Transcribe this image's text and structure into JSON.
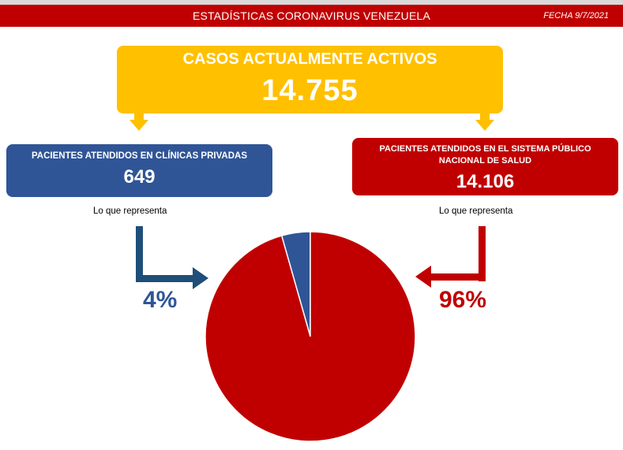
{
  "header": {
    "title": "ESTADÍSTICAS CORONAVIRUS VENEZUELA",
    "date": "FECHA 9/7/2021"
  },
  "active": {
    "label": "CASOS ACTUALMENTE ACTIVOS",
    "value": "14.755"
  },
  "private": {
    "label": "PACIENTES ATENDIDOS EN CLÍNICAS PRIVADAS",
    "value": "649",
    "note": "Lo que representa",
    "percent": "4%"
  },
  "public": {
    "label": "PACIENTES ATENDIDOS EN EL SISTEMA PÚBLICO NACIONAL DE SALUD",
    "value": "14.106",
    "note": "Lo que representa",
    "percent": "96%"
  },
  "colors": {
    "header": "#c00000",
    "active": "#ffc000",
    "private": "#2f5597",
    "public": "#c00000"
  },
  "chart_data": {
    "type": "pie",
    "categories": [
      "PACIENTES ATENDIDOS EN CLÍNICAS PRIVADAS",
      "PACIENTES ATENDIDOS EN EL SISTEMA PÚBLICO NACIONAL DE SALUD"
    ],
    "values": [
      649,
      14106
    ],
    "percent_labels": [
      "4%",
      "96%"
    ],
    "colors": [
      "#2f5597",
      "#c00000"
    ],
    "title": ""
  }
}
